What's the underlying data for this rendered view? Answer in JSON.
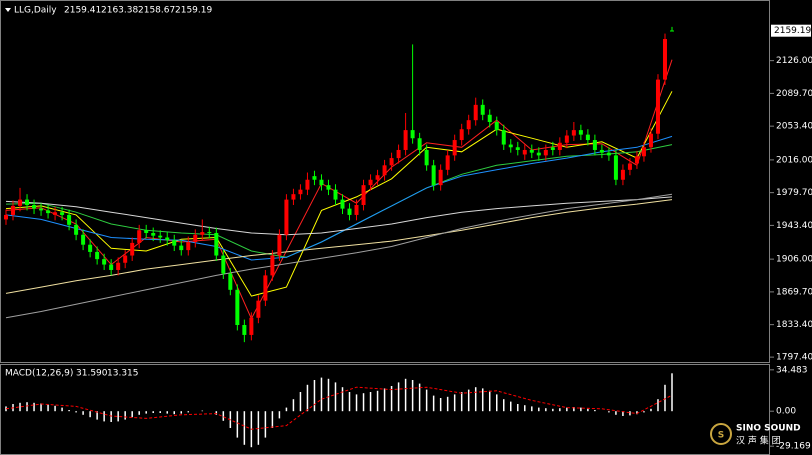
{
  "chart_data": {
    "type": "candlestick",
    "symbol": "LLG,Daily",
    "xlim": [
      0,
      95
    ],
    "ylim": [
      1792,
      2191
    ],
    "yticks": [
      {
        "value": 2126,
        "label": "2126.00"
      },
      {
        "value": 2089.7,
        "label": "2089.70"
      },
      {
        "value": 2053.4,
        "label": "2053.40"
      },
      {
        "value": 2016,
        "label": "2016.00"
      },
      {
        "value": 1979.7,
        "label": "1979.70"
      },
      {
        "value": 1943.4,
        "label": "1943.40"
      },
      {
        "value": 1906,
        "label": "1906.00"
      },
      {
        "value": 1869.7,
        "label": "1869.70"
      },
      {
        "value": 1833.4,
        "label": "1833.40"
      },
      {
        "value": 1797.4,
        "label": "1797.40"
      }
    ],
    "up_color": "#ff0000",
    "down_color": "#00ff00",
    "open": [
      1950,
      1955,
      1965,
      1972,
      1966,
      1962,
      1960,
      1955,
      1958,
      1955,
      1944,
      1933,
      1922,
      1914,
      1906,
      1900,
      1894,
      1902,
      1910,
      1924,
      1938,
      1935,
      1932,
      1930,
      1927,
      1921,
      1916,
      1925,
      1933,
      1936,
      1935,
      1910,
      1890,
      1872,
      1833,
      1822,
      1841,
      1860,
      1888,
      1910,
      1933,
      1972,
      1978,
      1983,
      1998,
      1994,
      1988,
      1983,
      1972,
      1962,
      1955,
      1966,
      1988,
      1994,
      1999,
      2010,
      2018,
      2027,
      2049,
      2040,
      2027,
      2010,
      1988,
      2005,
      2021,
      2038,
      2050,
      2060,
      2077,
      2066,
      2058,
      2049,
      2033,
      2030,
      2022,
      2027,
      2024,
      2021,
      2030,
      2027,
      2035,
      2043,
      2049,
      2044,
      2038,
      2027,
      2024,
      2021,
      1994,
      2005,
      2012,
      2020,
      2030,
      2045,
      2105,
      2159.41
    ],
    "high": [
      1961,
      1971,
      1985,
      1978,
      1972,
      1968,
      1966,
      1964,
      1964,
      1961,
      1950,
      1939,
      1928,
      1920,
      1912,
      1906,
      1908,
      1916,
      1930,
      1944,
      1944,
      1941,
      1938,
      1936,
      1933,
      1927,
      1931,
      1939,
      1950,
      1942,
      1941,
      1916,
      1896,
      1878,
      1839,
      1847,
      1866,
      1894,
      1916,
      1939,
      1978,
      1984,
      1989,
      2002,
      2004,
      2000,
      1994,
      1989,
      1978,
      1968,
      1972,
      1994,
      2000,
      2005,
      2016,
      2024,
      2033,
      2068,
      2144,
      2046,
      2033,
      2016,
      2011,
      2027,
      2044,
      2056,
      2066,
      2085,
      2083,
      2072,
      2064,
      2055,
      2039,
      2036,
      2033,
      2033,
      2030,
      2033,
      2036,
      2041,
      2049,
      2058,
      2055,
      2050,
      2044,
      2033,
      2030,
      2027,
      2011,
      2018,
      2026,
      2036,
      2051,
      2111,
      2156,
      2163.38
    ],
    "low": [
      1944,
      1949,
      1959,
      1960,
      1956,
      1954,
      1951,
      1949,
      1949,
      1938,
      1927,
      1916,
      1908,
      1900,
      1894,
      1888,
      1888,
      1896,
      1904,
      1918,
      1929,
      1926,
      1924,
      1921,
      1915,
      1910,
      1910,
      1919,
      1927,
      1929,
      1904,
      1884,
      1866,
      1827,
      1814,
      1816,
      1835,
      1854,
      1882,
      1904,
      1927,
      1966,
      1972,
      1977,
      1988,
      1982,
      1977,
      1966,
      1956,
      1949,
      1949,
      1960,
      1982,
      1988,
      1993,
      2004,
      2012,
      2021,
      2034,
      2021,
      2004,
      1982,
      1982,
      1999,
      2015,
      2032,
      2044,
      2054,
      2060,
      2052,
      2043,
      2027,
      2024,
      2021,
      2016,
      2018,
      2015,
      2015,
      2021,
      2021,
      2029,
      2037,
      2038,
      2032,
      2021,
      2018,
      2015,
      1988,
      1988,
      1999,
      2006,
      2014,
      2024,
      2039,
      2099,
      2158.67
    ],
    "close": [
      1955,
      1965,
      1972,
      1966,
      1962,
      1960,
      1957,
      1958,
      1955,
      1944,
      1933,
      1922,
      1914,
      1906,
      1900,
      1894,
      1902,
      1910,
      1924,
      1938,
      1935,
      1932,
      1930,
      1927,
      1921,
      1916,
      1925,
      1933,
      1936,
      1935,
      1910,
      1890,
      1872,
      1833,
      1822,
      1841,
      1860,
      1888,
      1910,
      1933,
      1972,
      1978,
      1983,
      1994,
      1994,
      1988,
      1983,
      1972,
      1962,
      1955,
      1966,
      1988,
      1994,
      1999,
      2010,
      2018,
      2027,
      2049,
      2040,
      2027,
      2010,
      1988,
      2005,
      2021,
      2038,
      2050,
      2060,
      2077,
      2066,
      2058,
      2049,
      2033,
      2030,
      2027,
      2027,
      2024,
      2021,
      2027,
      2027,
      2035,
      2043,
      2049,
      2044,
      2038,
      2027,
      2024,
      2021,
      1994,
      2005,
      2012,
      2020,
      2030,
      2045,
      2105,
      2150,
      2159.19
    ],
    "ma_x": [
      0,
      5,
      10,
      15,
      20,
      25,
      30,
      35,
      40,
      45,
      50,
      55,
      60,
      65,
      70,
      75,
      80,
      85,
      90,
      95
    ],
    "moving_averages": [
      {
        "color": "#ff2020",
        "values": [
          1960,
          1963,
          1945,
          1900,
          1930,
          1925,
          1928,
          1840,
          1915,
          1990,
          1968,
          2008,
          2035,
          2030,
          2060,
          2027,
          2033,
          2034,
          2010,
          2127
        ]
      },
      {
        "color": "#ffff00",
        "values": [
          1962,
          1965,
          1955,
          1918,
          1915,
          1928,
          1930,
          1865,
          1875,
          1960,
          1975,
          1995,
          2030,
          2025,
          2050,
          2040,
          2030,
          2036,
          2018,
          2092
        ]
      },
      {
        "color": "#2ecc40",
        "values": [
          1967,
          1968,
          1958,
          1945,
          1938,
          1935,
          1933,
          1915,
          1908,
          1925,
          1945,
          1965,
          1985,
          2000,
          2010,
          2015,
          2020,
          2022,
          2025,
          2033
        ]
      },
      {
        "color": "#1e90ff",
        "values": [
          1955,
          1950,
          1940,
          1930,
          1928,
          1927,
          1920,
          1905,
          1908,
          1925,
          1945,
          1965,
          1985,
          1998,
          2005,
          2012,
          2018,
          2025,
          2030,
          2042
        ]
      },
      {
        "color": "#d8d8d8",
        "values": [
          1970,
          1968,
          1964,
          1958,
          1952,
          1946,
          1940,
          1935,
          1933,
          1935,
          1940,
          1945,
          1952,
          1958,
          1962,
          1965,
          1968,
          1970,
          1972,
          1975
        ]
      },
      {
        "color": "#f0e0a0",
        "values": [
          1868,
          1875,
          1882,
          1888,
          1895,
          1900,
          1905,
          1910,
          1914,
          1918,
          1922,
          1926,
          1932,
          1938,
          1945,
          1952,
          1958,
          1963,
          1967,
          1972
        ]
      },
      {
        "color": "#a0a0a0",
        "values": [
          1841,
          1848,
          1856,
          1864,
          1872,
          1880,
          1888,
          1895,
          1901,
          1907,
          1913,
          1920,
          1930,
          1940,
          1948,
          1955,
          1962,
          1967,
          1972,
          1978
        ]
      }
    ],
    "macd": {
      "type": "bar",
      "title": "MACD(12,26,9)",
      "readout": [
        {
          "value": 31.59,
          "label": "31.590"
        },
        {
          "value": 13.315,
          "label": "13.315"
        }
      ],
      "ylim": [
        -34,
        38.5
      ],
      "yticks": [
        34.483,
        {
          "value": 0,
          "label": "0.00"
        },
        -29.169
      ],
      "color": "#ffffff",
      "values": [
        4,
        6,
        7,
        7.5,
        7,
        6.5,
        5.5,
        4.5,
        3,
        1,
        -1,
        -3,
        -5,
        -7,
        -8.5,
        -9,
        -8.5,
        -7,
        -5,
        -3,
        -2,
        -1.5,
        -1.5,
        -2,
        -2.5,
        -2,
        -1,
        0,
        0.5,
        0,
        -3,
        -8,
        -14,
        -22,
        -28,
        -30,
        -28,
        -22,
        -14,
        -6,
        3,
        10,
        16,
        22,
        26,
        28,
        27,
        24,
        20,
        16,
        14,
        15,
        16,
        17,
        19,
        21,
        24,
        27,
        26,
        23,
        18,
        13,
        11,
        12,
        14,
        16,
        18,
        20,
        19,
        17,
        14,
        10,
        8,
        6,
        5,
        4,
        3,
        2.5,
        2,
        2.5,
        3,
        3.5,
        3,
        2,
        1,
        0,
        -1,
        -3,
        -4,
        -3.5,
        -2.5,
        -1,
        2,
        10,
        22,
        31.59
      ],
      "signal": {
        "color": "#ff0000",
        "x": [
          0,
          5,
          10,
          15,
          20,
          25,
          30,
          35,
          40,
          45,
          50,
          55,
          60,
          65,
          70,
          75,
          80,
          85,
          90,
          95
        ],
        "values": [
          2,
          6,
          4,
          -4,
          -6,
          -3,
          -2,
          -15,
          -12,
          10,
          20,
          18,
          20,
          15,
          17,
          9,
          3,
          2,
          -2,
          13.315
        ]
      }
    },
    "watermark": {
      "name": "SINO SOUND",
      "sub": "汉 声 集 团"
    }
  }
}
